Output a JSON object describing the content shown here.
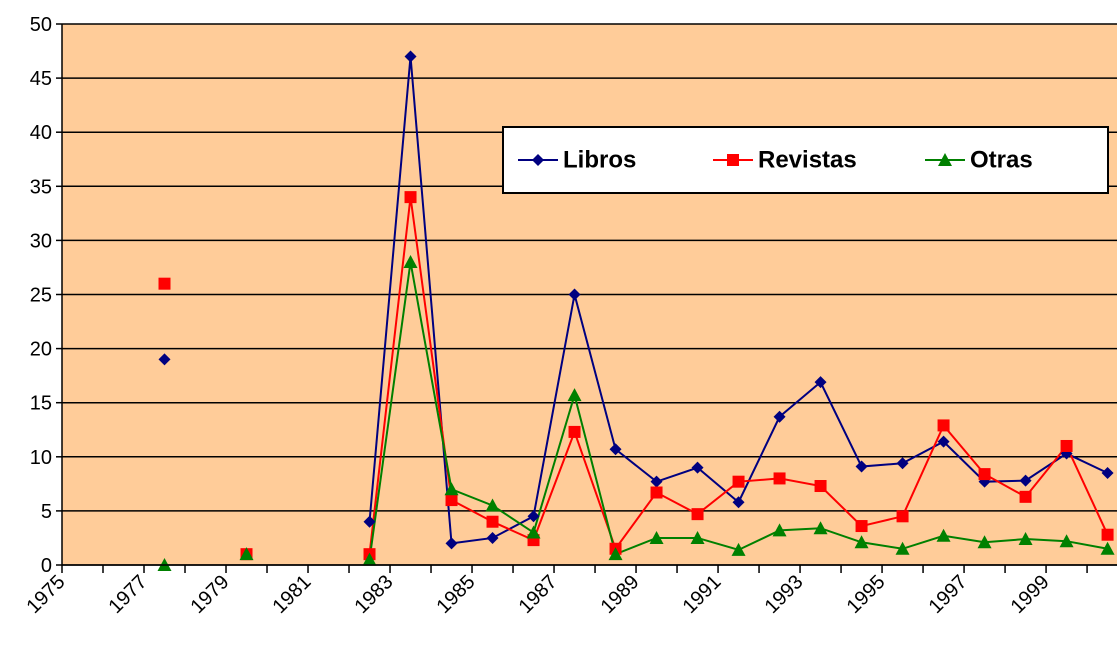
{
  "chart_data": {
    "type": "line",
    "x": [
      1977.5,
      1978.5,
      1979.5,
      1980.5,
      1981.5,
      1982.5,
      1983.5,
      1984.5,
      1985.5,
      1986.5,
      1987.5,
      1988.5,
      1989.5,
      1990.5,
      1991.5,
      1992.5,
      1993.5,
      1994.5,
      1995.5,
      1996.5,
      1997.5,
      1998.5,
      1999.5,
      2000.5
    ],
    "series": [
      {
        "name": "Libros",
        "color": "#000080",
        "marker": "diamond",
        "values": [
          19,
          null,
          null,
          null,
          null,
          4,
          47,
          2,
          2.5,
          4.5,
          25,
          10.7,
          7.7,
          9,
          5.8,
          13.7,
          16.9,
          9.1,
          9.4,
          11.4,
          7.7,
          7.8,
          10.3,
          8.5
        ]
      },
      {
        "name": "Revistas",
        "color": "#ff0000",
        "marker": "square",
        "values": [
          26,
          null,
          1,
          null,
          null,
          1,
          34,
          6,
          4,
          2.3,
          12.3,
          1.5,
          6.7,
          4.7,
          7.7,
          8,
          7.3,
          3.6,
          4.5,
          12.9,
          8.4,
          6.3,
          11,
          2.8
        ]
      },
      {
        "name": "Otras",
        "color": "#008000",
        "marker": "triangle",
        "values": [
          0,
          null,
          1,
          null,
          null,
          0.5,
          28,
          7,
          5.5,
          3,
          15.7,
          1,
          2.5,
          2.5,
          1.4,
          3.2,
          3.4,
          2.1,
          1.5,
          2.7,
          2.1,
          2.4,
          2.2,
          1.5
        ]
      }
    ],
    "xlim": [
      1975,
      2000.73
    ],
    "xticks": [
      1975,
      1977,
      1979,
      1981,
      1983,
      1985,
      1987,
      1989,
      1991,
      1993,
      1995,
      1997,
      1999
    ],
    "x_minor_ticks": [
      1976,
      1978,
      1980,
      1982,
      1984,
      1986,
      1988,
      1990,
      1992,
      1994,
      1996,
      1998,
      2000
    ],
    "ylim": [
      0,
      50
    ],
    "yticks": [
      0,
      5,
      10,
      15,
      20,
      25,
      30,
      35,
      40,
      45,
      50
    ],
    "grid": true,
    "plot_background": "#ffcc99",
    "legend": "top-right"
  }
}
